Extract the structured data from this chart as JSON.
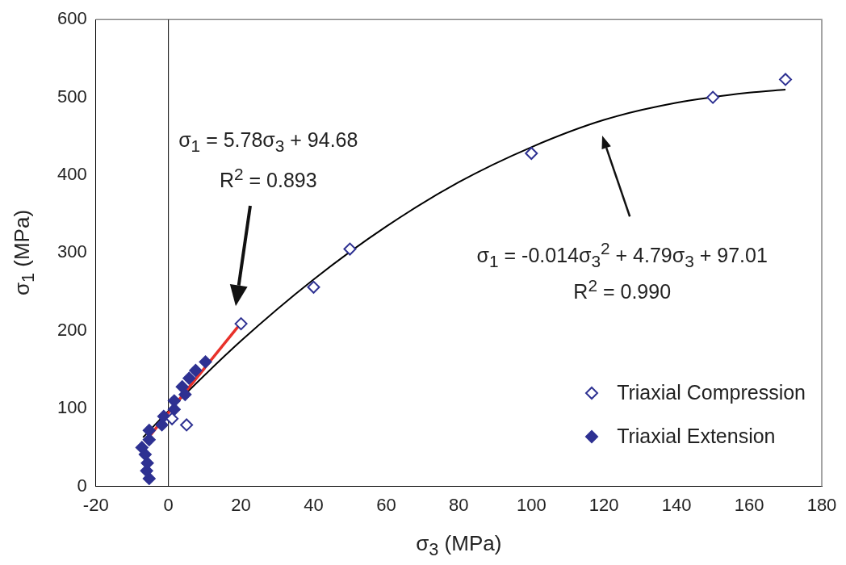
{
  "chart_data": {
    "type": "scatter",
    "xlabel": "σ$_{3}$ (MPa)",
    "ylabel": "σ$_{1}$ (MPa)",
    "xlim": [
      -20,
      180
    ],
    "xticks": [
      -20,
      0,
      20,
      40,
      60,
      80,
      100,
      120,
      140,
      160,
      180
    ],
    "ylim": [
      0,
      600
    ],
    "yticks": [
      0,
      100,
      200,
      300,
      400,
      500,
      600
    ],
    "grid": false,
    "legend": "bottom right",
    "series": [
      {
        "name": "Triaxial Compression",
        "color": "#2e3192",
        "marker": "diamond",
        "x": [
          1,
          5,
          20,
          40,
          50,
          100,
          150,
          170
        ],
        "values": [
          87,
          79,
          209,
          256,
          305,
          428,
          500,
          523
        ]
      },
      {
        "name": "Triaxial Extension",
        "color": "#2e3192",
        "marker": "diamond",
        "x": [
          -5.3,
          -6,
          -5.8,
          -6.4,
          -7.3,
          -5.3,
          -5.3,
          -1.8,
          -1.3,
          1.6,
          1.6,
          4.6,
          3.8,
          5.7,
          7.5,
          10.2
        ],
        "values": [
          10,
          20,
          30,
          41,
          50,
          60,
          72,
          79,
          90,
          99,
          110,
          118,
          128,
          139,
          149,
          160
        ]
      },
      {
        "type": "line",
        "marker": "none",
        "color": "#e8312a",
        "x": [
          -6.5,
          20
        ],
        "values": [
          57,
          210
        ]
      },
      {
        "type": "line",
        "marker": "none",
        "color": "#000000",
        "x": [
          -7,
          0,
          20,
          40,
          60,
          80,
          100,
          120,
          140,
          160,
          170
        ],
        "values": [
          63,
          97,
          187,
          266,
          334,
          391,
          436,
          471,
          493,
          506,
          510
        ]
      }
    ],
    "ref_lines": [
      {
        "axis": "x",
        "value": 0,
        "color": "#000000"
      }
    ],
    "annotations": [
      "σ$_{1}$ = 5.78σ$_{3}$ + 94.68",
      "R$^{2}$ = 0.893",
      "σ$_{1}$ = -0.014σ$_{3}$$^{2}$ + 4.79σ$_{3}$ + 97.01",
      "R$^{2}$ = 0.990"
    ]
  }
}
